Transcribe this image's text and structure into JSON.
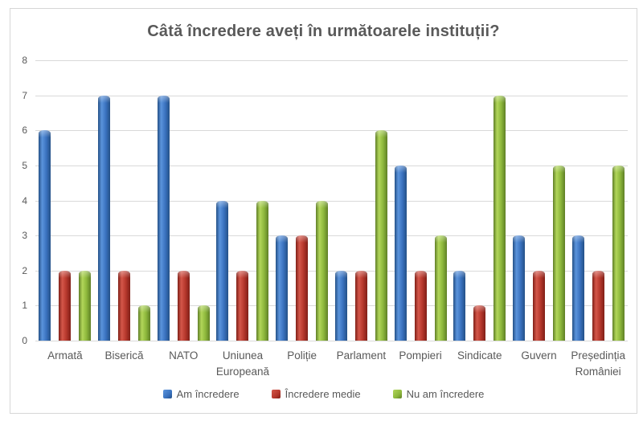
{
  "chart_data": {
    "type": "bar",
    "title": "Câtă încredere aveți în următoarele instituții?",
    "categories": [
      "Armată",
      "Biserică",
      "NATO",
      "Uniunea Europeană",
      "Poliție",
      "Parlament",
      "Pompieri",
      "Sindicate",
      "Guvern",
      "Președinția României"
    ],
    "series": [
      {
        "name": "Am încredere",
        "color": "#3a72bf",
        "color_light": "#5b94dc",
        "color_dark": "#245087",
        "values": [
          6,
          7,
          7,
          4,
          3,
          2,
          5,
          2,
          3,
          3
        ]
      },
      {
        "name": "Încredere medie",
        "color": "#b5372c",
        "color_light": "#d4574a",
        "color_dark": "#801f17",
        "values": [
          2,
          2,
          2,
          2,
          3,
          2,
          2,
          1,
          2,
          2
        ]
      },
      {
        "name": "Nu am încredere",
        "color": "#8db83c",
        "color_light": "#b2d65a",
        "color_dark": "#5f7f26",
        "values": [
          2,
          1,
          1,
          4,
          4,
          6,
          3,
          7,
          5,
          5
        ]
      }
    ],
    "xlabel": "",
    "ylabel": "",
    "ylim": [
      0,
      8
    ],
    "y_ticks": [
      0,
      1,
      2,
      3,
      4,
      5,
      6,
      7,
      8
    ],
    "grid": true,
    "legend_position": "bottom",
    "text_color": "#595959",
    "grid_color": "#d9d9d9",
    "frame_color": "#d6d6d6",
    "background": "#ffffff"
  }
}
